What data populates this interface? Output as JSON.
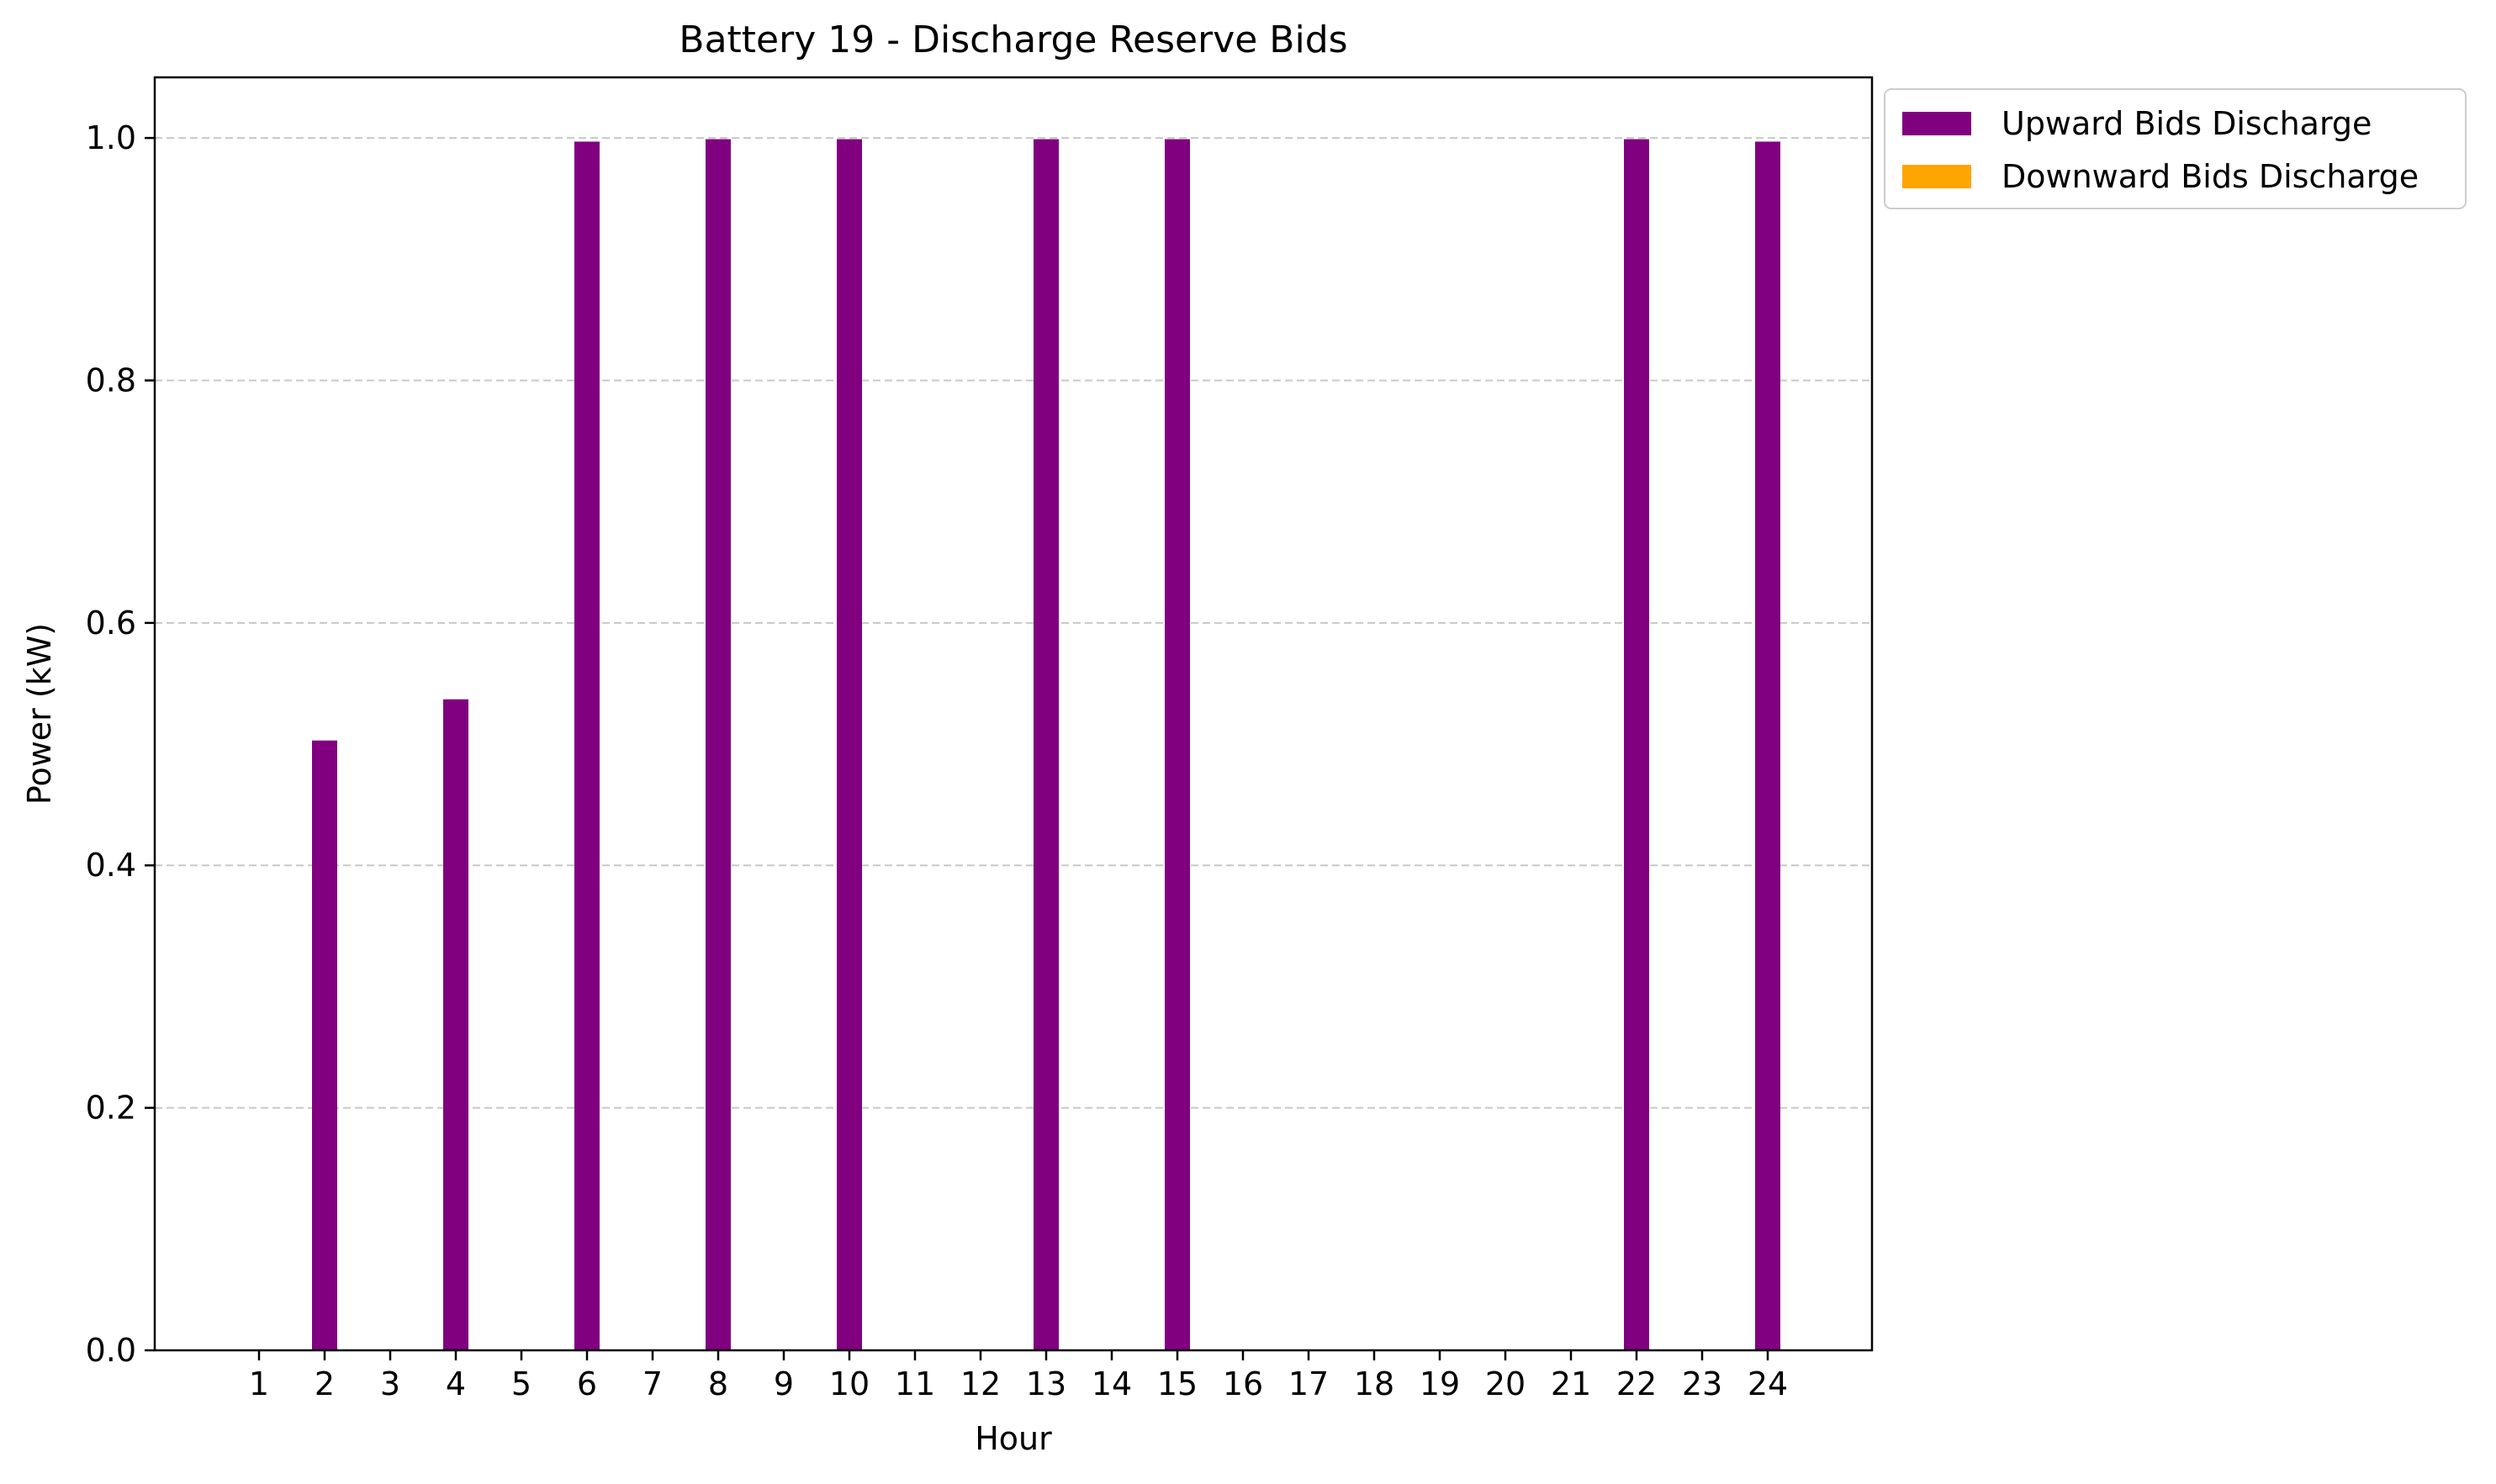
{
  "chart_data": {
    "type": "bar",
    "title": "Battery 19 - Discharge Reserve Bids",
    "xlabel": "Hour",
    "ylabel": "Power (kW)",
    "categories": [
      "1",
      "2",
      "3",
      "4",
      "5",
      "6",
      "7",
      "8",
      "9",
      "10",
      "11",
      "12",
      "13",
      "14",
      "15",
      "16",
      "17",
      "18",
      "19",
      "20",
      "21",
      "22",
      "23",
      "24"
    ],
    "series": [
      {
        "name": "Upward Bids Discharge",
        "color": "#800080",
        "values": [
          0,
          0.503,
          0,
          0.537,
          0,
          0.997,
          0,
          0.999,
          0,
          0.999,
          0,
          0,
          0.999,
          0,
          0.999,
          0,
          0,
          0,
          0,
          0,
          0,
          0.999,
          0,
          0.997
        ]
      },
      {
        "name": "Downward Bids Discharge",
        "color": "#FFA500",
        "values": [
          0,
          0,
          0,
          0,
          0,
          0,
          0,
          0,
          0,
          0,
          0,
          0,
          0,
          0,
          0,
          0,
          0,
          0,
          0,
          0,
          0,
          0,
          0,
          0
        ]
      }
    ],
    "ylim": [
      0,
      1.05
    ],
    "yticks": [
      "0.0",
      "0.2",
      "0.4",
      "0.6",
      "0.8",
      "1.0"
    ],
    "grid": "y-dashed",
    "legend": "outside-top-right"
  }
}
